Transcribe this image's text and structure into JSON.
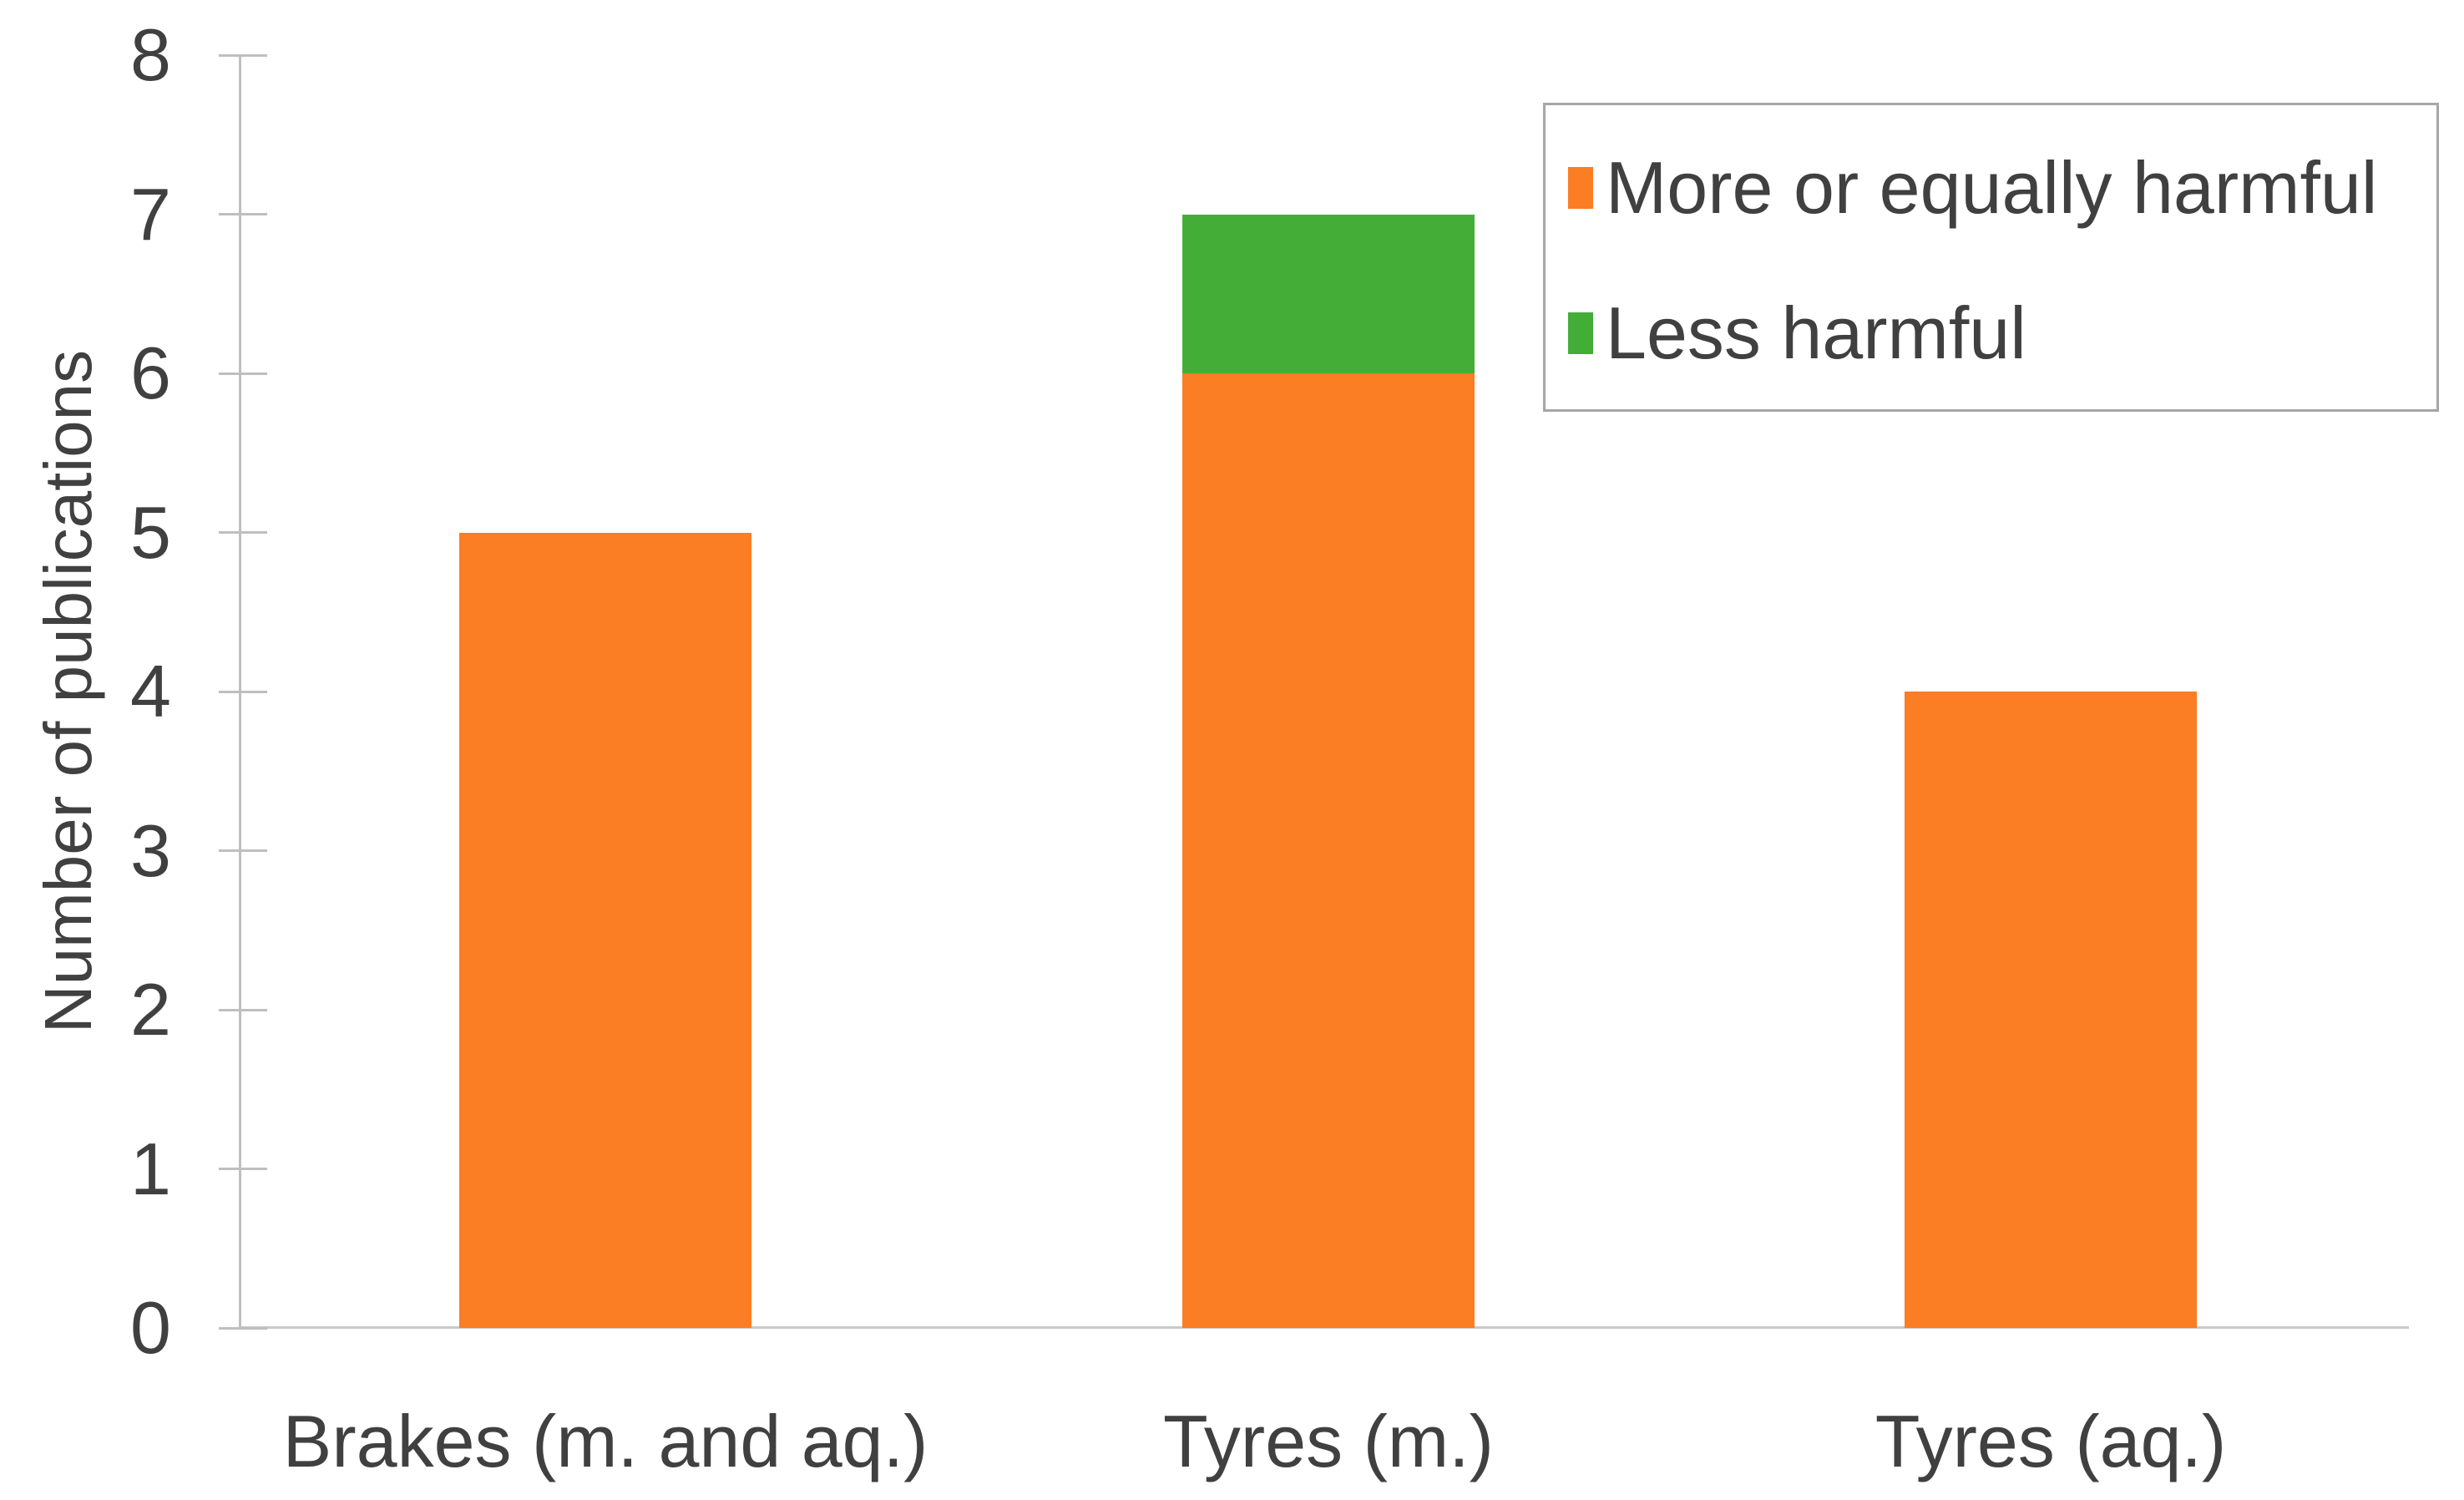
{
  "chart_data": {
    "type": "bar",
    "stacked": true,
    "title": "",
    "xlabel": "",
    "ylabel": "Number of publications",
    "ylim": [
      0,
      8
    ],
    "ytick_step": 1,
    "yticks": [
      0,
      1,
      2,
      3,
      4,
      5,
      6,
      7,
      8
    ],
    "grid": false,
    "legend_position": "top-right",
    "categories": [
      "Brakes (m. and aq.)",
      "Tyres (m.)",
      "Tyres (aq.)"
    ],
    "series": [
      {
        "name": "More or equally harmful",
        "color": "#FB7D24",
        "values": [
          5,
          6,
          4
        ]
      },
      {
        "name": "Less harmful",
        "color": "#44AD38",
        "values": [
          0,
          1,
          0
        ]
      }
    ],
    "stack_totals": [
      5,
      7,
      4
    ]
  },
  "colors": {
    "text": "#404040",
    "axis_line": "#BFBFBF",
    "baseline": "#C9C9C9",
    "legend_border": "#A6A6A6",
    "background": "#FFFFFF"
  }
}
